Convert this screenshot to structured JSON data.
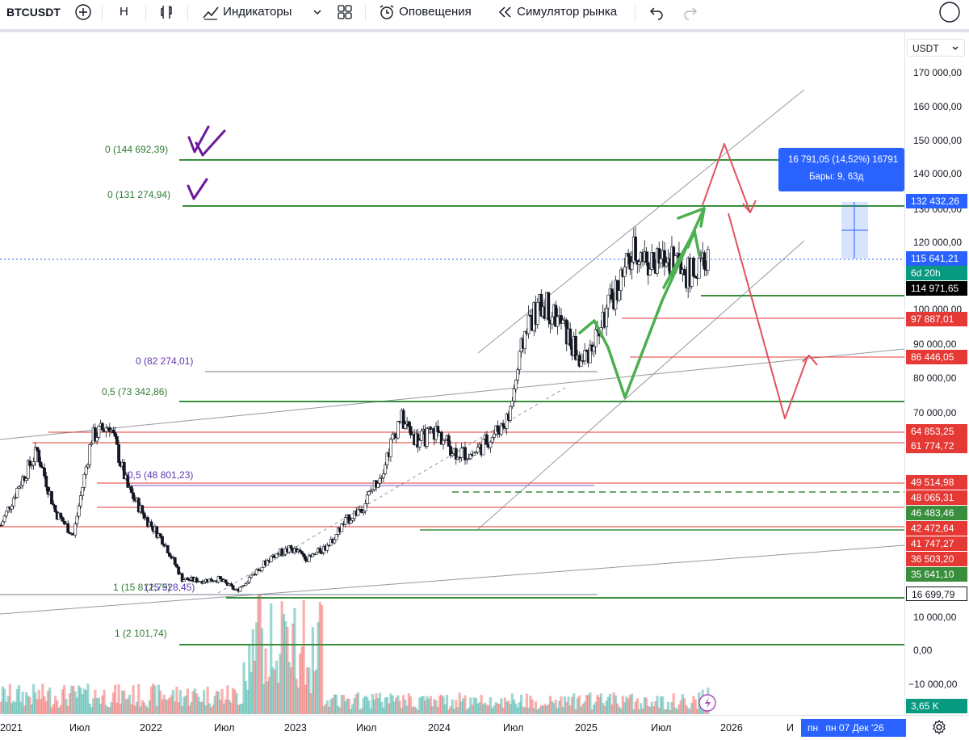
{
  "toolbar": {
    "symbol": "BTCUSDT",
    "interval": "Н",
    "indicators": "Индикаторы",
    "alerts": "Оповещения",
    "replay": "Симулятор рынка"
  },
  "axis": {
    "currency": "USDT",
    "labels": [
      "170 000,00",
      "160 000,00",
      "150 000,00",
      "140 000,00",
      "130 000,00",
      "120 000,00",
      "100 000,00",
      "90 000,00",
      "80 000,00",
      "70 000,00",
      "10 000,00",
      "0,00",
      "−10 000,00"
    ]
  },
  "price_tags": {
    "t132": "132 432,26",
    "t115": "115 641,21",
    "countdown": "6d 20h",
    "t114": "114 971,65",
    "t97": "97 887,01",
    "t86": "86 446,05",
    "t64": "64 853,25",
    "t61": "61 774,72",
    "t49": "49 514,98",
    "t48": "48 065,31",
    "t46": "46 483,46",
    "t42": "42 472,64",
    "t41": "41 747,27",
    "t36": "36 503,20",
    "t35": "35 641,10",
    "t16": "16 699,79",
    "vol": "3,65 K"
  },
  "measure": {
    "line1": "16 791,05 (14,52%) 16791",
    "line2": "Бары: 9, 63д"
  },
  "fib_labels": {
    "f144": "0 (144 692,39)",
    "f131": "0 (131 274,94)",
    "f82": "0 (82 274,01)",
    "f73": "0,5 (73 342,86)",
    "f48": "0,5 (48 801,23)",
    "f15": "1 (15 812,79)",
    "f15b": "(15 528,45)",
    "f2": "1 (2 101,74)"
  },
  "xaxis": {
    "labels": [
      "2021",
      "Июл",
      "2022",
      "Июл",
      "2023",
      "Июл",
      "2024",
      "Июл",
      "2025",
      "Июл",
      "2026",
      "И"
    ],
    "date_badge": "пн 07 Дек '26",
    "date_prefix": "пн"
  },
  "chart_data": {
    "type": "candlestick",
    "series": [
      {
        "name": "BTCUSDT",
        "approx_weekly_close": [
          36000,
          48000,
          58000,
          40000,
          33000,
          62000,
          66000,
          47000,
          38000,
          31000,
          20000,
          19500,
          20000,
          16500,
          22000,
          27000,
          29000,
          26000,
          30000,
          37000,
          42000,
          52000,
          68000,
          61000,
          64000,
          58000,
          57000,
          62000,
          68000,
          96000,
          102000,
          95000,
          84000,
          94000,
          107000,
          118000,
          113000,
          116000,
          110000,
          115641
        ]
      }
    ],
    "y_axis_labels": [
      "170 000,00",
      "160 000,00",
      "150 000,00",
      "140 000,00",
      "130 000,00",
      "120 000,00",
      "100 000,00",
      "90 000,00",
      "80 000,00",
      "70 000,00",
      "10 000,00",
      "0,00",
      "−10 000,00"
    ],
    "x_axis_labels": [
      "2021",
      "Июл",
      "2022",
      "Июл",
      "2023",
      "Июл",
      "2024",
      "Июл",
      "2025",
      "Июл",
      "2026"
    ],
    "current_price": 115641.21,
    "colors": {
      "up": "#26a69a",
      "down": "#ef5350",
      "candle": "#131722",
      "fib_green": "#2e7d32",
      "fib_red": "#c62828",
      "projection_red": "#e05260",
      "projection_green": "#4caf50"
    }
  }
}
